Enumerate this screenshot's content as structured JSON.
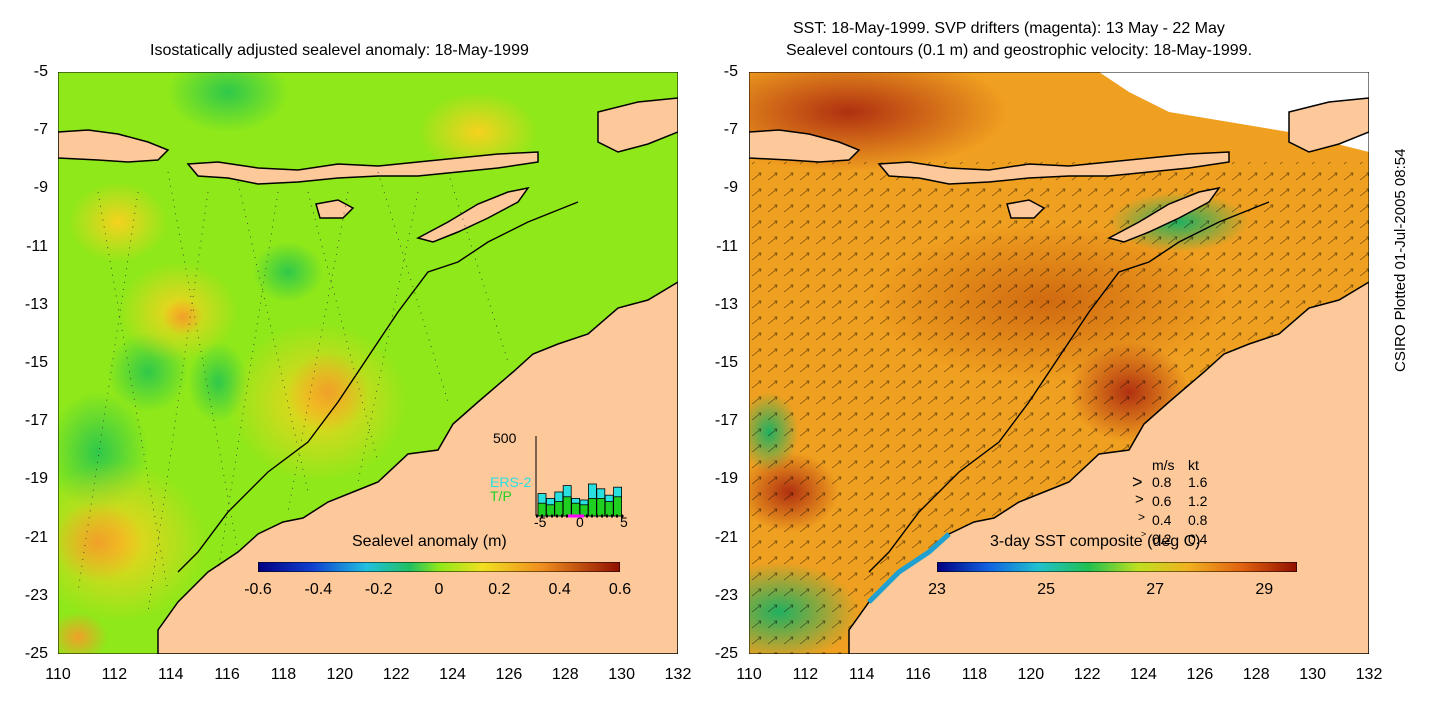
{
  "left_panel": {
    "title": "Isostatically adjusted sealevel anomaly: 18-May-1999",
    "colorbar_label": "Sealevel anomaly (m)",
    "colorbar_ticks": [
      "-0.6",
      "-0.4",
      "-0.2",
      "0",
      "0.2",
      "0.4",
      "0.6"
    ],
    "inset": {
      "ymax_label": "500",
      "series": [
        "ERS-2",
        "T/P"
      ],
      "x_ticks": [
        "-5",
        "0",
        "5"
      ],
      "ers2_color": "#29e0e0",
      "tp_color": "#20d020",
      "ers2_values": [
        0.28,
        0.22,
        0.3,
        0.38,
        0.22,
        0.2,
        0.4,
        0.34,
        0.26,
        0.36
      ],
      "tp_values": [
        0.16,
        0.14,
        0.18,
        0.24,
        0.16,
        0.14,
        0.22,
        0.22,
        0.18,
        0.24
      ]
    }
  },
  "right_panel": {
    "title_line1": "SST: 18-May-1999. SVP drifters (magenta): 13 May - 22 May",
    "title_line2": "Sealevel contours (0.1 m) and geostrophic velocity: 18-May-1999.",
    "colorbar_label": "3-day SST composite (deg C)",
    "colorbar_ticks": [
      "23",
      "25",
      "27",
      "29"
    ],
    "velocity_legend": {
      "header_ms": "m/s",
      "header_kt": "kt",
      "rows": [
        {
          "ms": "0.8",
          "kt": "1.6"
        },
        {
          "ms": "0.6",
          "kt": "1.2"
        },
        {
          "ms": "0.4",
          "kt": "0.8"
        },
        {
          "ms": "0.2",
          "kt": "0.4"
        }
      ]
    }
  },
  "y_ticks": [
    "-5",
    "-7",
    "-9",
    "-11",
    "-13",
    "-15",
    "-17",
    "-19",
    "-21",
    "-23",
    "-25"
  ],
  "x_ticks": [
    "110",
    "112",
    "114",
    "116",
    "118",
    "120",
    "122",
    "124",
    "126",
    "128",
    "130",
    "132"
  ],
  "credit": "CSIRO Plotted 01-Jul-2005 08:54",
  "colors": {
    "land": "#fdc99b",
    "sla_base": "#8ee81a",
    "sst_base": "#f0a020",
    "coast": "#000000"
  }
}
